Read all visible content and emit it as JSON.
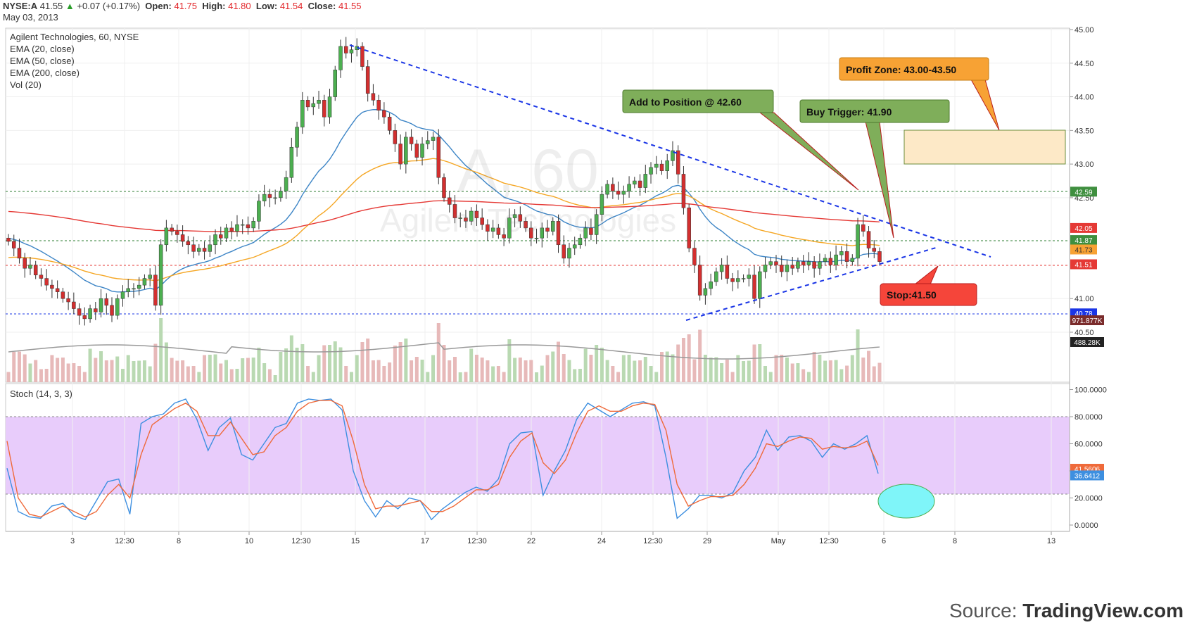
{
  "header": {
    "symbol": "NYSE:A",
    "last": "41.55",
    "change": "+0.07 (+0.17%)",
    "open_label": "Open:",
    "open": "41.75",
    "high_label": "High:",
    "high": "41.80",
    "low_label": "Low:",
    "low": "41.54",
    "close_label": "Close:",
    "close": "41.55",
    "date": "May 03, 2013"
  },
  "legend": {
    "title": "Agilent Technologies, 60, NYSE",
    "ema20": "EMA (20, close)",
    "ema50": "EMA (50, close)",
    "ema200": "EMA (200, close)",
    "vol": "Vol (20)",
    "stoch": "Stoch (14, 3, 3)"
  },
  "watermark": {
    "ticker": "A, 60",
    "name": "Agilent Technologies"
  },
  "source": {
    "prefix": "Source:",
    "brand": "TradingView.com"
  },
  "colors": {
    "up": "#4caf50",
    "down": "#d32f2f",
    "ema20": "#3d85c6",
    "ema50": "#f5a623",
    "ema200": "#e53935",
    "stoch_band": "#e8ccfb",
    "trend": "#1a35e6"
  },
  "chart_data": [
    {
      "type": "candlestick",
      "x_ticks": [
        "3",
        "12:30",
        "8",
        "10",
        "12:30",
        "15",
        "17",
        "12:30",
        "22",
        "24",
        "12:30",
        "29",
        "May",
        "12:30",
        "6",
        "8",
        "13"
      ],
      "y_ticks": [
        "45.00",
        "44.50",
        "44.00",
        "43.50",
        "43.00",
        "42.50",
        "41.00",
        "40.50"
      ],
      "ylim": [
        40.2,
        45.0
      ],
      "closes": [
        41.85,
        41.75,
        41.6,
        41.45,
        41.5,
        41.35,
        41.3,
        41.2,
        41.15,
        41.1,
        41.0,
        40.95,
        40.85,
        40.75,
        40.7,
        40.85,
        40.8,
        41.0,
        40.9,
        40.75,
        41.0,
        41.1,
        41.15,
        41.15,
        41.2,
        41.3,
        41.35,
        40.9,
        41.8,
        42.05,
        42.0,
        41.95,
        41.85,
        41.8,
        41.7,
        41.75,
        41.7,
        41.8,
        41.95,
        41.9,
        42.05,
        42.0,
        42.1,
        42.1,
        42.05,
        42.15,
        42.45,
        42.55,
        42.5,
        42.5,
        42.6,
        42.8,
        43.25,
        43.55,
        43.95,
        43.85,
        43.9,
        43.95,
        43.7,
        44.0,
        44.4,
        44.75,
        44.65,
        44.7,
        44.75,
        44.45,
        44.05,
        43.95,
        43.8,
        43.7,
        43.5,
        43.3,
        43.0,
        43.4,
        43.3,
        43.1,
        43.3,
        43.35,
        43.4,
        42.8,
        42.5,
        42.4,
        42.2,
        42.2,
        42.15,
        42.3,
        42.2,
        42.1,
        42.0,
        42.05,
        41.95,
        41.9,
        42.2,
        42.25,
        42.15,
        42.05,
        41.9,
        41.9,
        42.05,
        42.0,
        42.15,
        41.8,
        41.6,
        41.75,
        41.8,
        41.9,
        42.05,
        41.95,
        42.25,
        42.55,
        42.7,
        42.6,
        42.55,
        42.6,
        42.7,
        42.75,
        42.65,
        42.85,
        42.95,
        43.0,
        42.9,
        43.05,
        43.2,
        42.85,
        42.35,
        41.75,
        41.5,
        41.05,
        41.15,
        41.25,
        41.4,
        41.5,
        41.3,
        41.25,
        41.3,
        41.3,
        41.35,
        41.0,
        41.4,
        41.5,
        41.55,
        41.5,
        41.4,
        41.5,
        41.45,
        41.55,
        41.5,
        41.55,
        41.45,
        41.55,
        41.6,
        41.5,
        41.65,
        41.7,
        41.55,
        41.6,
        42.1,
        42.0,
        41.75,
        41.7,
        41.55
      ]
    },
    {
      "type": "line",
      "title": "Stoch (14, 3, 3)",
      "y_ticks": [
        "0.0000",
        "20.0000",
        "40.0000",
        "60.0000",
        "80.0000",
        "100.0000"
      ],
      "ylim": [
        -5,
        100
      ],
      "band": [
        20,
        80
      ],
      "series": [
        {
          "name": "%K",
          "values": [
            42,
            10,
            6,
            5,
            14,
            16,
            7,
            4,
            18,
            32,
            34,
            8,
            75,
            80,
            82,
            90,
            93,
            78,
            55,
            72,
            79,
            52,
            48,
            60,
            72,
            75,
            90,
            93,
            92,
            93,
            85,
            40,
            18,
            6,
            18,
            12,
            20,
            18,
            4,
            12,
            18,
            24,
            28,
            25,
            34,
            60,
            68,
            69,
            22,
            40,
            55,
            78,
            90,
            85,
            80,
            85,
            90,
            91,
            88,
            50,
            5,
            12,
            22,
            22,
            20,
            24,
            40,
            50,
            70,
            55,
            65,
            66,
            62,
            50,
            60,
            56,
            60,
            66,
            38
          ]
        },
        {
          "name": "%D",
          "values": [
            62,
            20,
            8,
            6,
            10,
            14,
            10,
            6,
            10,
            22,
            30,
            20,
            52,
            74,
            80,
            86,
            90,
            84,
            66,
            66,
            76,
            64,
            52,
            54,
            66,
            72,
            84,
            90,
            92,
            92,
            88,
            62,
            30,
            12,
            14,
            14,
            16,
            18,
            10,
            10,
            14,
            20,
            26,
            26,
            30,
            50,
            62,
            68,
            46,
            38,
            48,
            68,
            84,
            88,
            84,
            84,
            88,
            90,
            89,
            70,
            30,
            14,
            18,
            21,
            21,
            22,
            30,
            42,
            60,
            58,
            62,
            65,
            64,
            56,
            58,
            57,
            58,
            62,
            44
          ]
        }
      ]
    }
  ],
  "price_badges": [
    "42.59",
    "42.05",
    "41.87",
    "41.73",
    "41.51",
    "40.78",
    "971.877K",
    "488.28K"
  ],
  "stoch_badges": [
    "41.5606",
    "36.6412"
  ],
  "annotations": {
    "add_position": "Add to Position @ 42.60",
    "buy_trigger": "Buy Trigger: 41.90",
    "profit_zone": "Profit Zone: 43.00-43.50",
    "stop": "Stop:41.50"
  }
}
